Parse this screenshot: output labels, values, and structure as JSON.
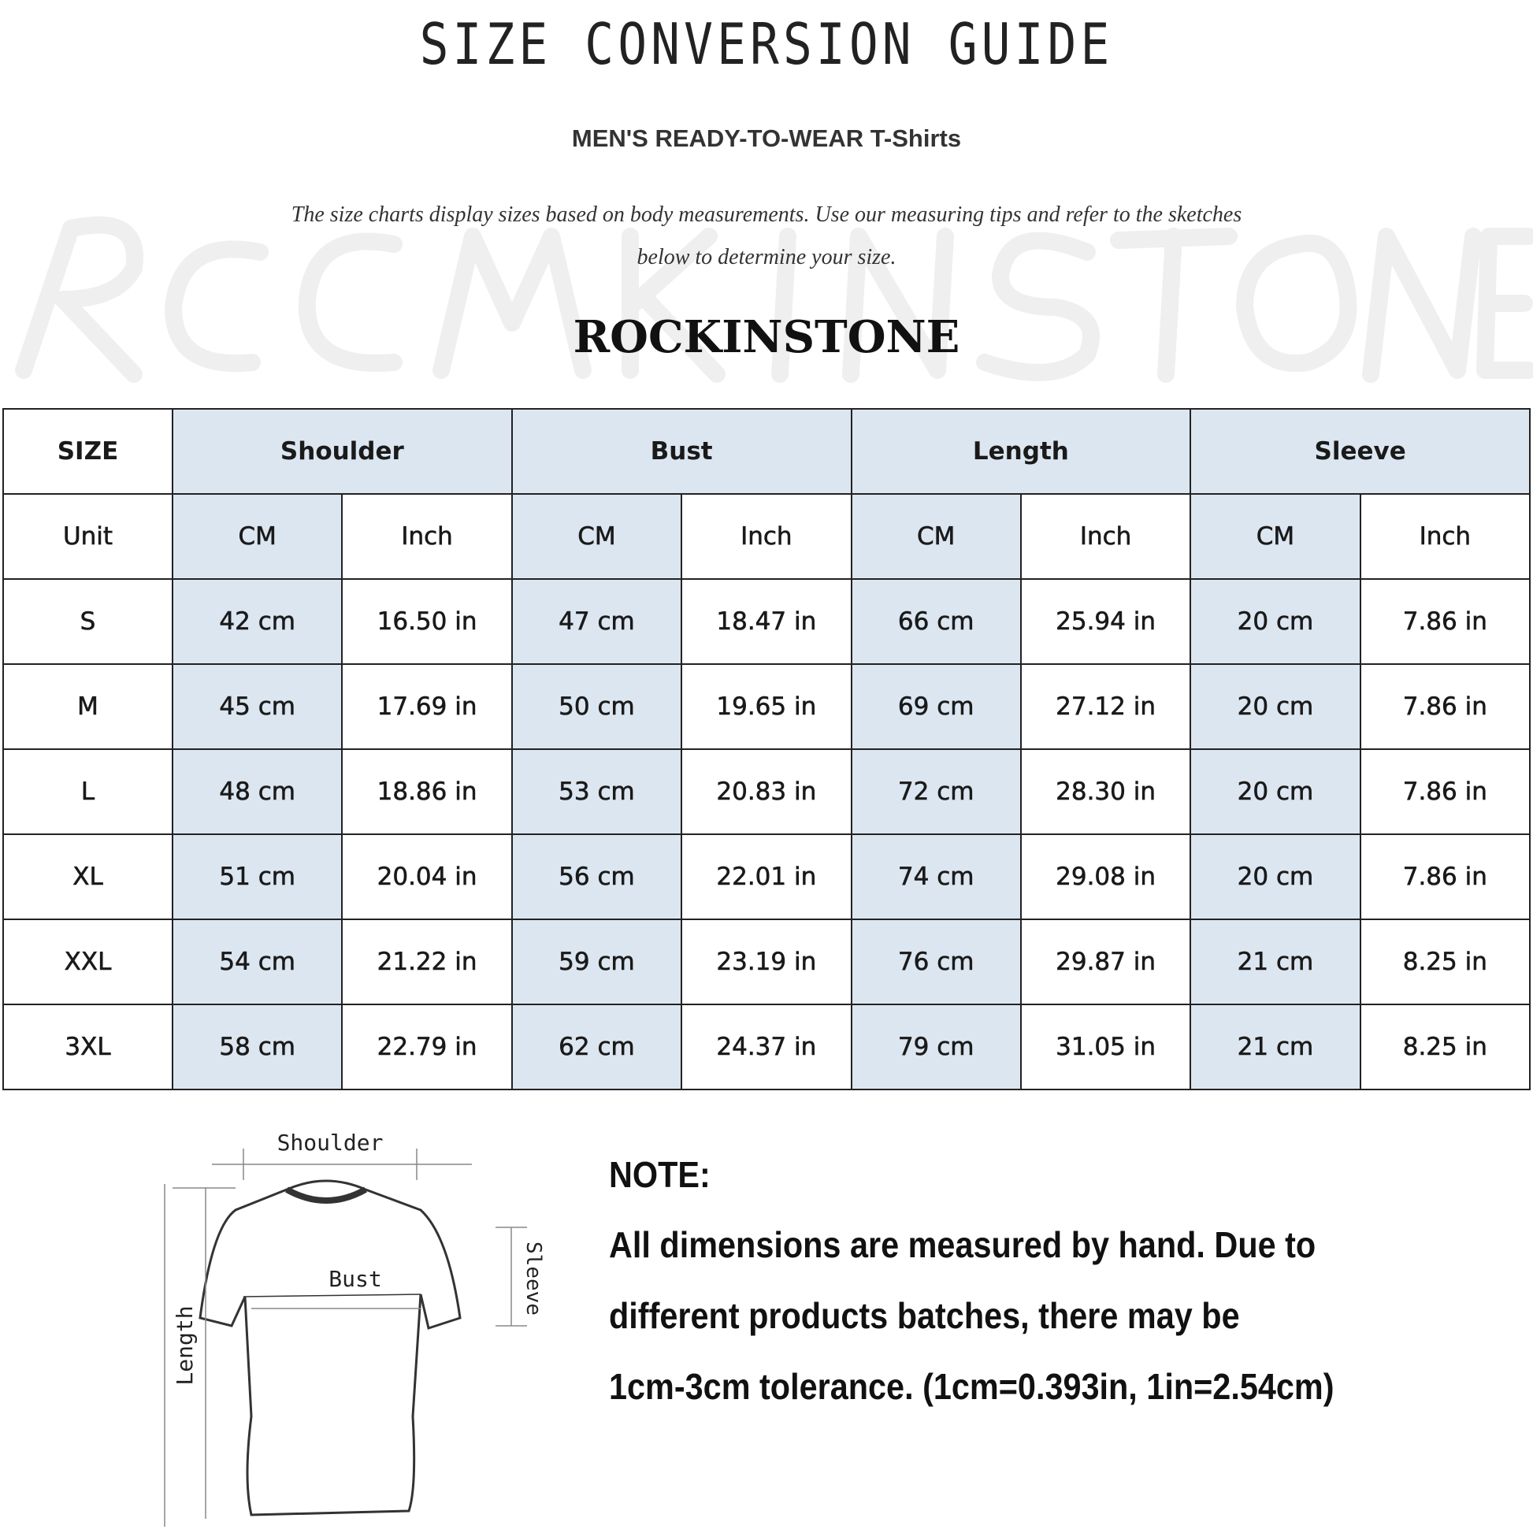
{
  "header": {
    "title": "SIZE CONVERSION GUIDE",
    "subtitle": "MEN'S READY-TO-WEAR T-Shirts",
    "description_line1": "The size charts display sizes based on body measurements. Use our measuring tips and refer to the sketches",
    "description_line2": "below to determine your size.",
    "brand": "ROCKINSTONE",
    "watermark": "ROCKINSTONE"
  },
  "colors": {
    "header_fill": "#dce6f1",
    "border": "#222222"
  },
  "table": {
    "size_label": "SIZE",
    "groups": [
      "Shoulder",
      "Bust",
      "Length",
      "Sleeve"
    ],
    "unit_label": "Unit",
    "units": [
      "CM",
      "Inch",
      "CM",
      "Inch",
      "CM",
      "Inch",
      "CM",
      "Inch"
    ],
    "rows": [
      {
        "size": "S",
        "values": [
          "42 cm",
          "16.50 in",
          "47 cm",
          "18.47  in",
          "66 cm",
          "25.94  in",
          "20 cm",
          "7.86  in"
        ]
      },
      {
        "size": "M",
        "values": [
          "45 cm",
          "17.69  in",
          "50 cm",
          "19.65  in",
          "69 cm",
          "27.12  in",
          "20 cm",
          "7.86  in"
        ]
      },
      {
        "size": "L",
        "values": [
          "48 cm",
          "18.86  in",
          "53 cm",
          "20.83  in",
          "72 cm",
          "28.30  in",
          "20 cm",
          "7.86  in"
        ]
      },
      {
        "size": "XL",
        "values": [
          "51 cm",
          "20.04  in",
          "56 cm",
          "22.01  in",
          "74 cm",
          "29.08  in",
          "20 cm",
          "7.86  in"
        ]
      },
      {
        "size": "XXL",
        "values": [
          "54 cm",
          "21.22  in",
          "59 cm",
          "23.19  in",
          "76 cm",
          "29.87  in",
          "21 cm",
          "8.25  in"
        ]
      },
      {
        "size": "3XL",
        "values": [
          "58 cm",
          "22.79  in",
          "62 cm",
          "24.37  in",
          "79 cm",
          "31.05  in",
          "21 cm",
          "8.25  in"
        ]
      }
    ]
  },
  "diagram": {
    "shoulder": "Shoulder",
    "bust": "Bust",
    "length": "Length",
    "sleeve": "Sleeve"
  },
  "note": {
    "heading": "NOTE:",
    "line1": "All dimensions are measured by hand. Due to",
    "line2": "different products batches, there may be",
    "line3": "1cm-3cm tolerance. (1cm=0.393in, 1in=2.54cm)"
  }
}
